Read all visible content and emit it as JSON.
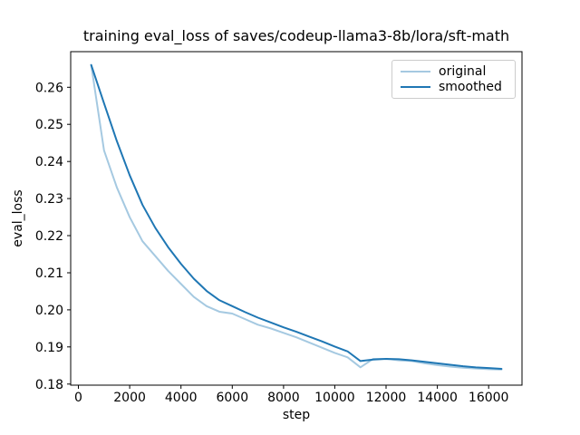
{
  "chart_data": {
    "type": "line",
    "title": "training eval_loss of saves/codeup-llama3-8b/lora/sft-math",
    "xlabel": "step",
    "ylabel": "eval_loss",
    "grid": false,
    "legend_position": "upper right",
    "xlim": [
      -300,
      17300
    ],
    "ylim": [
      0.1797,
      0.2696
    ],
    "x_ticks": [
      0,
      2000,
      4000,
      6000,
      8000,
      10000,
      12000,
      14000,
      16000
    ],
    "y_ticks": [
      0.18,
      0.19,
      0.2,
      0.21,
      0.22,
      0.23,
      0.24,
      0.25,
      0.26
    ],
    "x": [
      500,
      1000,
      1500,
      2000,
      2500,
      3000,
      3500,
      4000,
      4500,
      5000,
      5500,
      6000,
      6500,
      7000,
      7500,
      8000,
      8500,
      9000,
      9500,
      10000,
      10500,
      11000,
      11500,
      12000,
      12500,
      13000,
      13500,
      14000,
      14500,
      15000,
      15500,
      16000,
      16500
    ],
    "series": [
      {
        "name": "original",
        "color": "#1f77b4",
        "alpha": 0.4,
        "values": [
          0.266,
          0.243,
          0.233,
          0.225,
          0.2185,
          0.2145,
          0.2105,
          0.207,
          0.2035,
          0.201,
          0.1995,
          0.199,
          0.1975,
          0.196,
          0.195,
          0.1938,
          0.1926,
          0.1912,
          0.1898,
          0.1884,
          0.1872,
          0.1845,
          0.1868,
          0.1868,
          0.1864,
          0.1862,
          0.1856,
          0.1851,
          0.1847,
          0.1844,
          0.1842,
          0.184,
          0.1839
        ]
      },
      {
        "name": "smoothed",
        "color": "#1f77b4",
        "alpha": 1.0,
        "values": [
          0.266,
          0.2557,
          0.2455,
          0.2363,
          0.2283,
          0.2221,
          0.2169,
          0.2124,
          0.2084,
          0.2051,
          0.2026,
          0.201,
          0.1994,
          0.1979,
          0.1966,
          0.1953,
          0.1941,
          0.1928,
          0.1915,
          0.1901,
          0.1888,
          0.1862,
          0.1866,
          0.1868,
          0.1867,
          0.1864,
          0.186,
          0.1856,
          0.1852,
          0.1848,
          0.1845,
          0.1843,
          0.1841
        ]
      }
    ]
  }
}
